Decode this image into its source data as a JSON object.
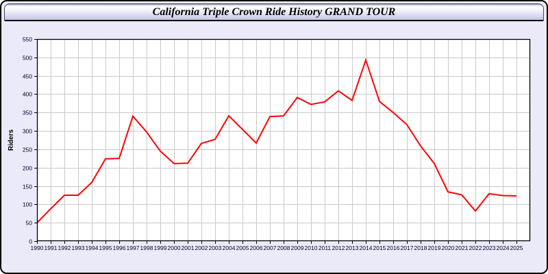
{
  "window": {
    "title": "California Triple Crown Ride History GRAND TOUR",
    "background_color": "#eaeaf8",
    "border_color": "#000000"
  },
  "chart_data": {
    "type": "line",
    "title": "California Triple Crown Ride History GRAND TOUR",
    "xlabel": "",
    "ylabel": "Riders",
    "ylim": [
      0,
      550
    ],
    "ytick_step": 50,
    "grid": true,
    "legend": "none",
    "plot_background": "#ffffff",
    "gridline_color": "#c9c9c9",
    "axis_color": "#000000",
    "tick_label_color": "#000028",
    "line_color": "#ff0000",
    "categories": [
      "1990",
      "1991",
      "1992",
      "1993",
      "1994",
      "1995",
      "1996",
      "1997",
      "1998",
      "1999",
      "2000",
      "2001",
      "2002",
      "2003",
      "2004",
      "2005",
      "2006",
      "2007",
      "2008",
      "2009",
      "2010",
      "2011",
      "2012",
      "2013",
      "2014",
      "2015",
      "2016",
      "2017",
      "2018",
      "2019",
      "2020",
      "2021",
      "2022",
      "2023",
      "2024",
      "2025"
    ],
    "series": [
      {
        "name": "Riders",
        "color": "#ff0000",
        "values": [
          50,
          88,
          125,
          125,
          160,
          224,
          225,
          340,
          297,
          245,
          211,
          212,
          266,
          277,
          341,
          304,
          267,
          339,
          341,
          391,
          372,
          379,
          409,
          383,
          493,
          380,
          350,
          317,
          259,
          211,
          134,
          126,
          82,
          129,
          124,
          123
        ]
      }
    ]
  }
}
